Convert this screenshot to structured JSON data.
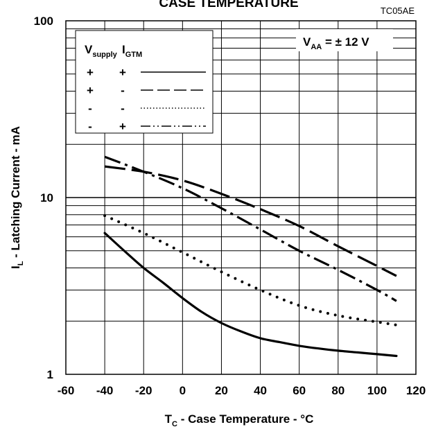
{
  "chart_data": {
    "type": "line",
    "title": "CASE TEMPERATURE",
    "figure_code": "TC05AE",
    "x_axis": {
      "label_main": "T",
      "label_sub": "C",
      "label_rest": " - Case Temperature - °C",
      "range": [
        -60,
        120
      ],
      "ticks": [
        -60,
        -40,
        -20,
        0,
        20,
        40,
        60,
        80,
        100,
        120
      ]
    },
    "y_axis": {
      "label_main": "I",
      "label_sub": "L",
      "label_rest": " - Latching Current - mA",
      "scale": "log",
      "range": [
        1,
        100
      ],
      "ticks": [
        1,
        10,
        100
      ]
    },
    "grid": true,
    "annotation": {
      "main": "V",
      "sub": "AA",
      "rest": " = ± 12 V"
    },
    "legend": {
      "placement": "top-left",
      "header_1_main": "V",
      "header_1_sub": "supply",
      "header_2_main": "I",
      "header_2_sub": "GTM",
      "rows": [
        {
          "v_supply": "+",
          "i_gtm": "+",
          "style": "solid"
        },
        {
          "v_supply": "+",
          "i_gtm": "-",
          "style": "dashed"
        },
        {
          "v_supply": "-",
          "i_gtm": "-",
          "style": "dotted"
        },
        {
          "v_supply": "-",
          "i_gtm": "+",
          "style": "dash-dot"
        }
      ]
    },
    "series": [
      {
        "style": "solid",
        "x": [
          -40,
          -30,
          -20,
          -10,
          0,
          10,
          20,
          30,
          40,
          50,
          60,
          70,
          80,
          90,
          100,
          110
        ],
        "y": [
          6.3,
          5.0,
          4.0,
          3.3,
          2.7,
          2.25,
          1.95,
          1.75,
          1.6,
          1.52,
          1.45,
          1.4,
          1.36,
          1.33,
          1.3,
          1.27
        ]
      },
      {
        "style": "dashed",
        "x": [
          -40,
          -20,
          0,
          20,
          40,
          60,
          80,
          100,
          110
        ],
        "y": [
          15.0,
          14.0,
          12.5,
          10.5,
          8.6,
          6.9,
          5.3,
          4.1,
          3.6
        ]
      },
      {
        "style": "dotted",
        "x": [
          -40,
          -20,
          0,
          20,
          40,
          60,
          80,
          100,
          110
        ],
        "y": [
          7.9,
          6.3,
          4.9,
          3.8,
          3.0,
          2.45,
          2.15,
          1.98,
          1.9
        ]
      },
      {
        "style": "dash-dot",
        "x": [
          -40,
          -20,
          0,
          20,
          40,
          60,
          80,
          100,
          110
        ],
        "y": [
          17.0,
          14.0,
          11.3,
          8.7,
          6.6,
          5.0,
          3.9,
          3.0,
          2.6
        ]
      }
    ]
  }
}
